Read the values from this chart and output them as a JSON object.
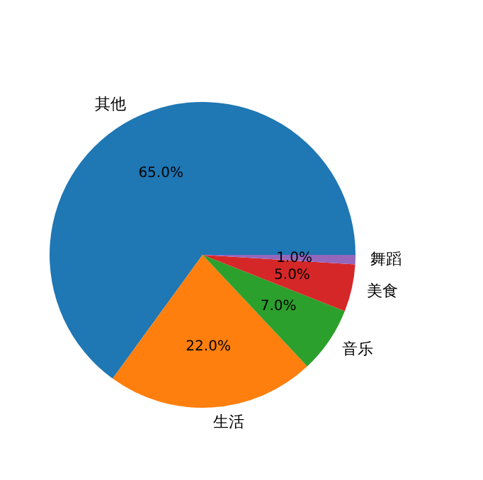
{
  "chart_data": {
    "type": "pie",
    "categories": [
      "其他",
      "生活",
      "音乐",
      "美食",
      "舞蹈"
    ],
    "values": [
      65,
      22,
      7,
      5,
      1
    ],
    "colors": [
      "#1f77b4",
      "#ff7f0e",
      "#2ca02c",
      "#d62728",
      "#9467bd"
    ],
    "value_labels": [
      "65.0%",
      "22.0%",
      "7.0%",
      "5.0%",
      "1.0%"
    ]
  }
}
